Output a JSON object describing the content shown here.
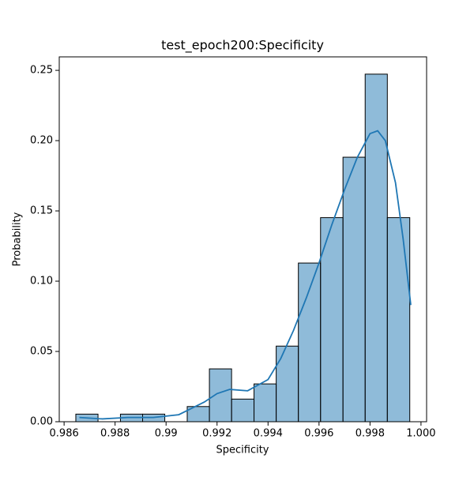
{
  "chart_data": {
    "type": "histogram",
    "title": "test_epoch200:Specificity",
    "xlabel": "Specificity",
    "ylabel": "Probability",
    "bins": [
      0.98646,
      0.98733,
      0.98821,
      0.98908,
      0.98995,
      0.99083,
      0.9917,
      0.99257,
      0.99345,
      0.99432,
      0.99519,
      0.99606,
      0.99694,
      0.99781,
      0.99868,
      0.99956
    ],
    "values": [
      0.0054,
      0,
      0.0054,
      0.0054,
      0,
      0.0108,
      0.0376,
      0.0161,
      0.0269,
      0.0538,
      0.1129,
      0.1452,
      0.1882,
      0.2473,
      0.1452
    ],
    "color": "rgba(31,119,180,0.5)",
    "kde": {
      "color": "#1f77b4",
      "x": [
        0.9866,
        0.9875,
        0.9885,
        0.9895,
        0.9905,
        0.9915,
        0.992,
        0.9925,
        0.9932,
        0.994,
        0.9945,
        0.995,
        0.9955,
        0.996,
        0.9965,
        0.997,
        0.9975,
        0.998,
        0.9983,
        0.9986,
        0.999,
        0.9993,
        0.9996
      ],
      "values": [
        0.003,
        0.002,
        0.003,
        0.003,
        0.005,
        0.014,
        0.02,
        0.023,
        0.022,
        0.03,
        0.045,
        0.065,
        0.088,
        0.113,
        0.14,
        0.165,
        0.188,
        0.205,
        0.207,
        0.2,
        0.17,
        0.13,
        0.083
      ]
    },
    "xlim": [
      0.98581,
      1.00022
    ],
    "xticks": [
      0.986,
      0.988,
      0.99,
      0.992,
      0.994,
      0.996,
      0.998,
      {
        "value": 1,
        "label": "1.000"
      }
    ],
    "ylim": [
      0,
      0.2596
    ],
    "yticks": [
      {
        "value": 0,
        "label": "0.00"
      },
      0.05,
      {
        "value": 0.1,
        "label": "0.10"
      },
      0.15,
      {
        "value": 0.2,
        "label": "0.20"
      },
      0.25
    ]
  }
}
